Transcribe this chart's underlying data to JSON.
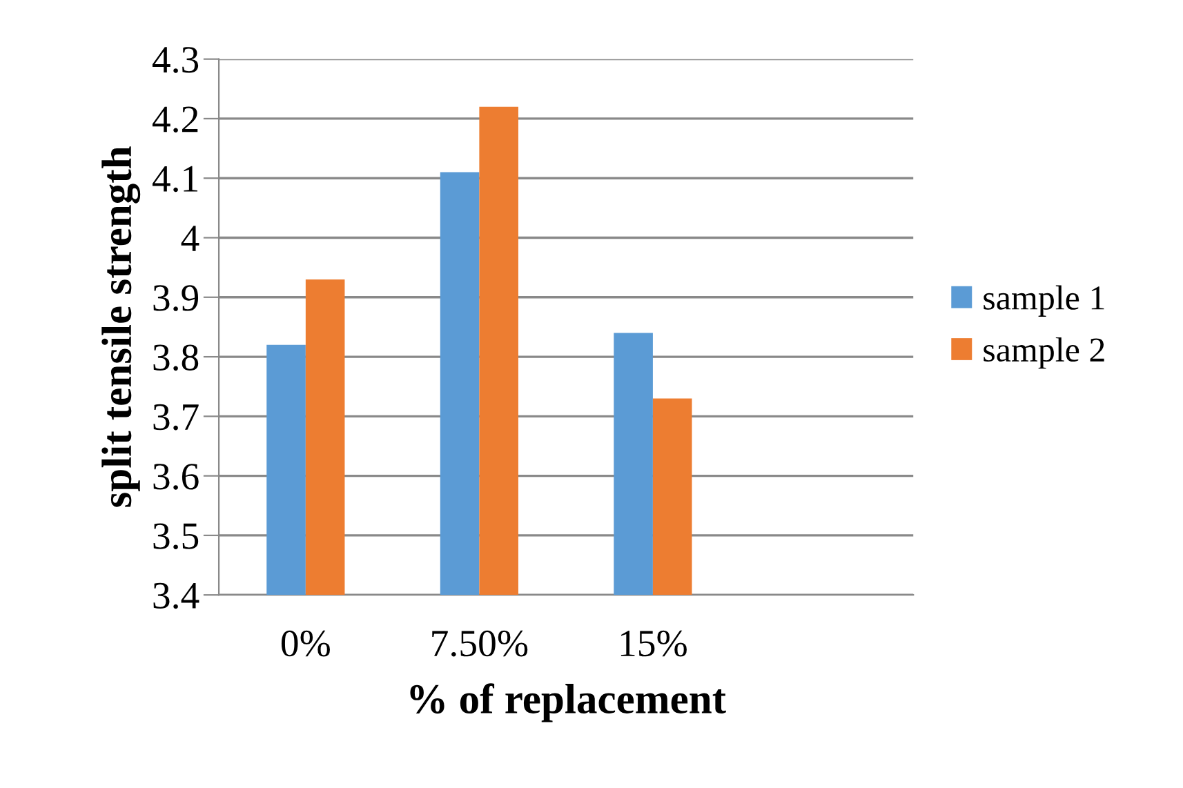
{
  "chart_data": {
    "type": "bar",
    "xlabel": "% of replacement",
    "ylabel": "split tensile strength",
    "categories": [
      "0%",
      "7.50%",
      "15%",
      null
    ],
    "series": [
      {
        "name": "sample 1",
        "color": "#5b9bd5",
        "values": [
          3.82,
          4.11,
          3.84,
          null
        ]
      },
      {
        "name": "sample 2",
        "color": "#ed7d31",
        "values": [
          3.93,
          4.22,
          3.73,
          null
        ]
      }
    ],
    "ylim": [
      3.4,
      4.3
    ],
    "yticks": [
      3.4,
      3.5,
      3.6,
      3.7,
      3.8,
      3.9,
      4,
      4.1,
      4.2,
      4.3
    ],
    "grid": "y",
    "legend": "right"
  }
}
